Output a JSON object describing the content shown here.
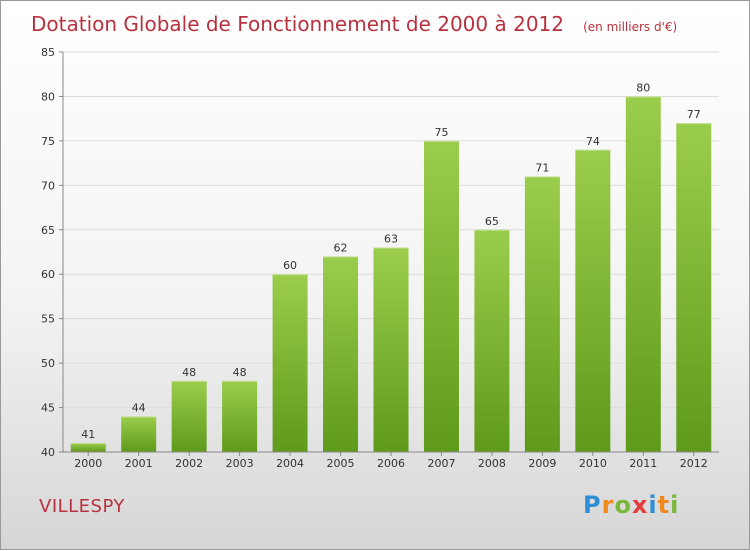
{
  "chart_data": {
    "type": "bar",
    "title": "Dotation Globale de Fonctionnement de 2000 à 2012",
    "subtitle": "(en milliers d'€)",
    "categories": [
      "2000",
      "2001",
      "2002",
      "2003",
      "2004",
      "2005",
      "2006",
      "2007",
      "2008",
      "2009",
      "2010",
      "2011",
      "2012"
    ],
    "values": [
      41,
      44,
      48,
      48,
      60,
      62,
      63,
      75,
      65,
      71,
      74,
      80,
      77
    ],
    "ylim": [
      40,
      85
    ],
    "yticks": [
      40,
      45,
      50,
      55,
      60,
      65,
      70,
      75,
      80,
      85
    ],
    "grid": true,
    "bar_color_top": "#9bcd4c",
    "bar_color_bottom": "#5f9a1a"
  },
  "commune": "VILLESPY",
  "logo": {
    "text": "Proxiti",
    "letters": [
      "P",
      "r",
      "o",
      "x",
      "i",
      "t",
      "i"
    ],
    "colors": [
      "#2f8fd6",
      "#f08a1c",
      "#7ab83a",
      "#e23c3c",
      "#2f8fd6",
      "#f08a1c",
      "#7ab83a"
    ]
  }
}
